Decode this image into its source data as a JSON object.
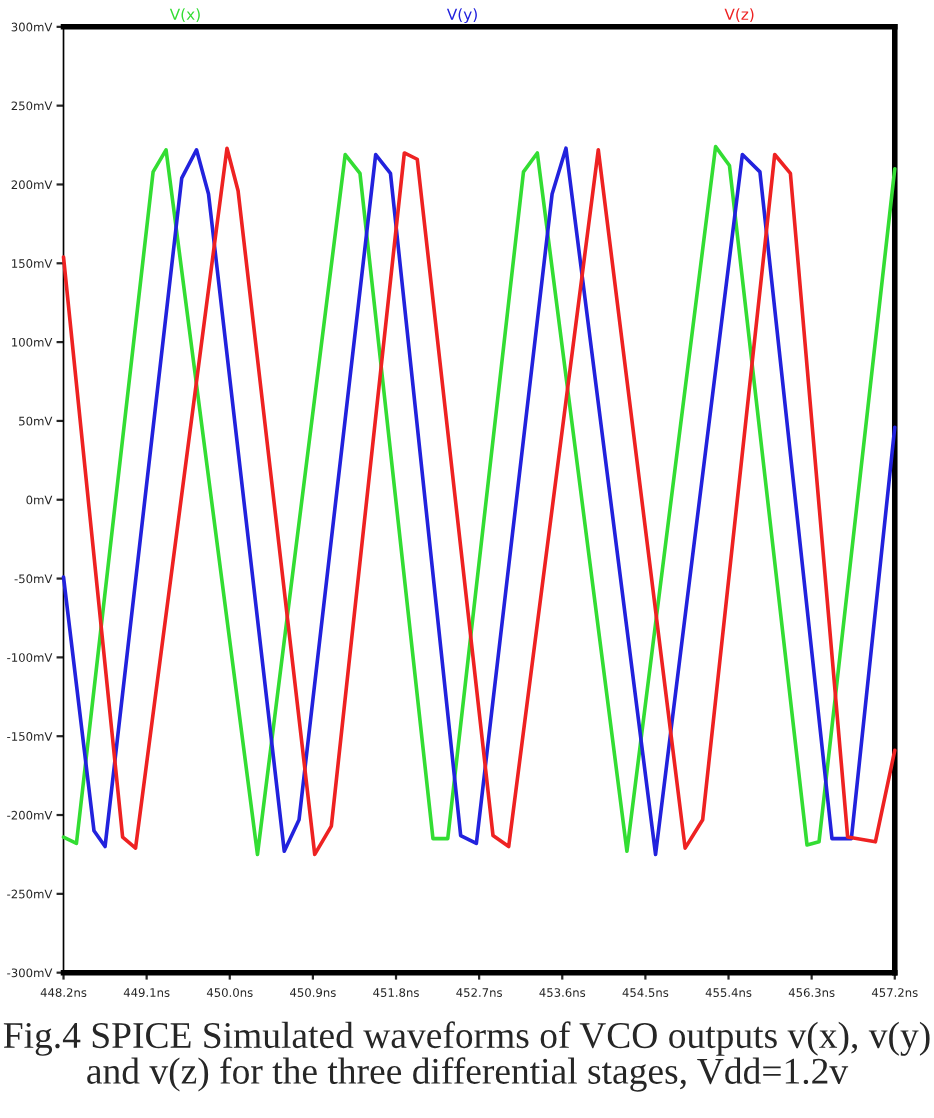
{
  "chart_data": {
    "type": "line",
    "annotations": [
      "Fig.4 SPICE Simulated waveforms of VCO outputs v(x), v(y) and v(z) for the three differential stages, Vdd=1.2v"
    ],
    "series": [
      {
        "name": "V(x)",
        "color": "#33dd33",
        "x": [
          448.2,
          448.34,
          449.17,
          449.31,
          450.3,
          451.25,
          451.41,
          452.2,
          452.36,
          453.18,
          453.33,
          454.3,
          455.26,
          455.41,
          456.25,
          456.38,
          457.2
        ],
        "values": [
          -214,
          -218,
          208,
          222,
          -225,
          219,
          207,
          -215,
          -215,
          208,
          220,
          -223,
          224,
          212,
          -219,
          -217,
          210
        ]
      },
      {
        "name": "V(y)",
        "color": "#2222dd",
        "x": [
          448.2,
          448.53,
          448.65,
          449.48,
          449.64,
          449.77,
          450.59,
          450.75,
          451.58,
          451.74,
          452.5,
          452.67,
          453.49,
          453.64,
          454.61,
          455.55,
          455.74,
          456.52,
          456.73,
          457.2
        ],
        "values": [
          -49,
          -210,
          -220,
          204,
          222,
          194,
          -223,
          -203,
          219,
          207,
          -213,
          -218,
          194,
          223,
          -225,
          219,
          208,
          -215,
          -215,
          46
        ]
      },
      {
        "name": "V(z)",
        "color": "#ee2222",
        "x": [
          448.2,
          448.84,
          448.98,
          449.97,
          450.09,
          450.92,
          451.1,
          451.89,
          452.03,
          452.85,
          453.02,
          453.99,
          454.93,
          455.12,
          455.9,
          456.07,
          456.69,
          456.99,
          457.2
        ],
        "values": [
          154,
          -214,
          -221,
          223,
          196,
          -225,
          -207,
          220,
          216,
          -213,
          -220,
          222,
          -221,
          -203,
          219,
          207,
          -214,
          -217,
          -159
        ]
      }
    ],
    "xlim": [
      448.2,
      457.2
    ],
    "xticks": [
      {
        "value": 448.2,
        "label": "448.2ns"
      },
      {
        "value": 449.1,
        "label": "449.1ns"
      },
      {
        "value": 450.0,
        "label": "450.0ns"
      },
      {
        "value": 450.9,
        "label": "450.9ns"
      },
      {
        "value": 451.8,
        "label": "451.8ns"
      },
      {
        "value": 452.7,
        "label": "452.7ns"
      },
      {
        "value": 453.6,
        "label": "453.6ns"
      },
      {
        "value": 454.5,
        "label": "454.5ns"
      },
      {
        "value": 455.4,
        "label": "455.4ns"
      },
      {
        "value": 456.3,
        "label": "456.3ns"
      },
      {
        "value": 457.2,
        "label": "457.2ns"
      }
    ],
    "ylim": [
      -300,
      300
    ],
    "yticks": [
      {
        "value": -300,
        "label": "-300mV"
      },
      {
        "value": -250,
        "label": "-250mV"
      },
      {
        "value": -200,
        "label": "-200mV"
      },
      {
        "value": -150,
        "label": "-150mV"
      },
      {
        "value": -100,
        "label": "-100mV"
      },
      {
        "value": -50,
        "label": "-50mV"
      },
      {
        "value": 0,
        "label": "0mV"
      },
      {
        "value": 50,
        "label": "50mV"
      },
      {
        "value": 100,
        "label": "100mV"
      },
      {
        "value": 150,
        "label": "150mV"
      },
      {
        "value": 200,
        "label": "200mV"
      },
      {
        "value": 250,
        "label": "250mV"
      },
      {
        "value": 300,
        "label": "300mV"
      }
    ],
    "grid": false,
    "legend": "top",
    "marker": "none",
    "line_style": "solid"
  }
}
